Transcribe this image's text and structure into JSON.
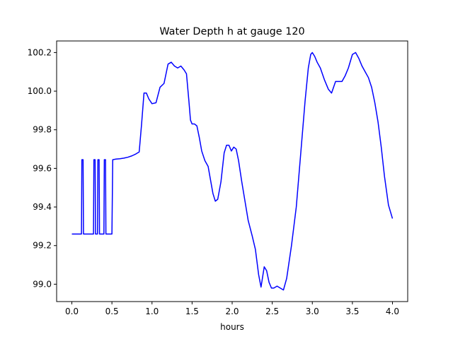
{
  "chart_data": {
    "type": "line",
    "title": "Water Depth h at gauge 120",
    "xlabel": "hours",
    "ylabel": "",
    "xlim": [
      -0.19,
      4.19
    ],
    "ylim": [
      98.91,
      100.26
    ],
    "xticks": [
      0.0,
      0.5,
      1.0,
      1.5,
      2.0,
      2.5,
      3.0,
      3.5,
      4.0
    ],
    "xtick_labels": [
      "0.0",
      "0.5",
      "1.0",
      "1.5",
      "2.0",
      "2.5",
      "3.0",
      "3.5",
      "4.0"
    ],
    "yticks": [
      99.0,
      99.2,
      99.4,
      99.6,
      99.8,
      100.0,
      100.2
    ],
    "ytick_labels": [
      "99.0",
      "99.2",
      "99.4",
      "99.6",
      "99.8",
      "100.0",
      "100.2"
    ],
    "grid": false,
    "legend": "none",
    "series": [
      {
        "color": "#0000ff",
        "x": [
          0.0,
          0.12,
          0.125,
          0.14,
          0.145,
          0.27,
          0.275,
          0.29,
          0.295,
          0.32,
          0.325,
          0.34,
          0.345,
          0.4,
          0.405,
          0.42,
          0.425,
          0.5,
          0.51,
          0.55,
          0.6,
          0.65,
          0.7,
          0.75,
          0.8,
          0.84,
          0.87,
          0.9,
          0.93,
          0.96,
          1.0,
          1.05,
          1.1,
          1.15,
          1.18,
          1.2,
          1.24,
          1.28,
          1.32,
          1.36,
          1.4,
          1.43,
          1.46,
          1.48,
          1.5,
          1.53,
          1.56,
          1.59,
          1.62,
          1.66,
          1.7,
          1.73,
          1.76,
          1.79,
          1.82,
          1.86,
          1.9,
          1.93,
          1.96,
          1.99,
          2.02,
          2.05,
          2.08,
          2.12,
          2.16,
          2.2,
          2.25,
          2.29,
          2.33,
          2.36,
          2.4,
          2.43,
          2.46,
          2.49,
          2.52,
          2.56,
          2.6,
          2.64,
          2.68,
          2.74,
          2.8,
          2.86,
          2.91,
          2.95,
          2.98,
          3.0,
          3.03,
          3.06,
          3.1,
          3.15,
          3.2,
          3.24,
          3.29,
          3.33,
          3.37,
          3.41,
          3.45,
          3.5,
          3.54,
          3.58,
          3.62,
          3.66,
          3.7,
          3.74,
          3.78,
          3.82,
          3.86,
          3.9,
          3.95,
          4.0
        ],
        "y": [
          99.26,
          99.26,
          99.645,
          99.645,
          99.26,
          99.26,
          99.645,
          99.645,
          99.26,
          99.26,
          99.645,
          99.645,
          99.26,
          99.26,
          99.645,
          99.645,
          99.26,
          99.26,
          99.645,
          99.648,
          99.65,
          99.653,
          99.658,
          99.665,
          99.675,
          99.685,
          99.83,
          99.99,
          99.99,
          99.96,
          99.935,
          99.94,
          100.02,
          100.04,
          100.1,
          100.14,
          100.15,
          100.13,
          100.12,
          100.13,
          100.11,
          100.09,
          99.95,
          99.85,
          99.83,
          99.83,
          99.82,
          99.76,
          99.69,
          99.64,
          99.61,
          99.54,
          99.47,
          99.43,
          99.44,
          99.53,
          99.68,
          99.72,
          99.72,
          99.69,
          99.71,
          99.7,
          99.64,
          99.53,
          99.43,
          99.33,
          99.25,
          99.18,
          99.05,
          98.985,
          99.09,
          99.07,
          99.01,
          98.98,
          98.98,
          98.99,
          98.98,
          98.97,
          99.03,
          99.2,
          99.4,
          99.7,
          99.95,
          100.12,
          100.19,
          100.2,
          100.18,
          100.15,
          100.12,
          100.06,
          100.01,
          99.99,
          100.05,
          100.05,
          100.05,
          100.08,
          100.12,
          100.19,
          100.2,
          100.17,
          100.13,
          100.1,
          100.07,
          100.02,
          99.94,
          99.84,
          99.71,
          99.56,
          99.41,
          99.34
        ]
      }
    ]
  }
}
